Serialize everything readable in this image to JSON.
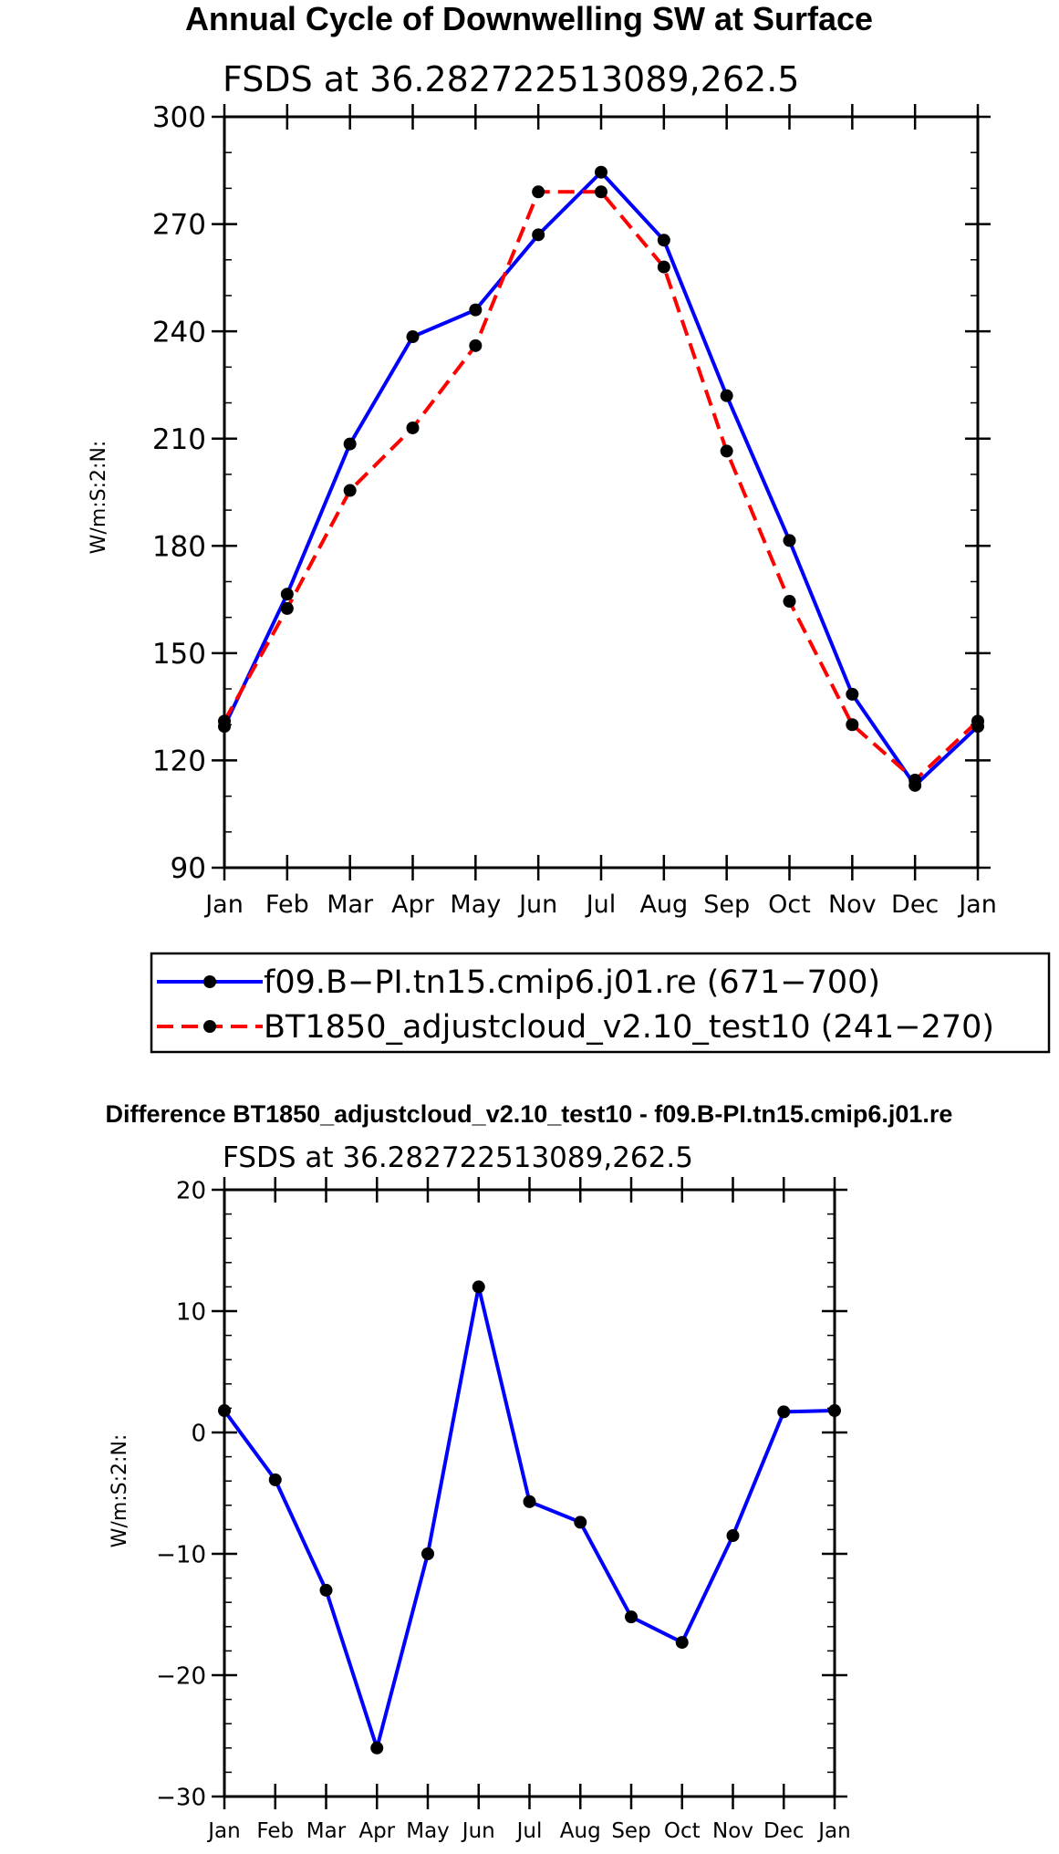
{
  "chart_data": [
    {
      "type": "line",
      "title": "Annual Cycle of Downwelling SW at Surface",
      "subtitle": "FSDS at 36.282722513089,262.5",
      "ylabel": "W/m:S:2:N:",
      "xlabel": "",
      "categories": [
        "Jan",
        "Feb",
        "Mar",
        "Apr",
        "May",
        "Jun",
        "Jul",
        "Aug",
        "Sep",
        "Oct",
        "Nov",
        "Dec",
        "Jan"
      ],
      "ylim": [
        90,
        300
      ],
      "yticks": [
        "90",
        "120",
        "150",
        "180",
        "210",
        "240",
        "270",
        "300"
      ],
      "series": [
        {
          "name": "f09.B-PI.tn15.cmip6.j01.re (671-700)",
          "label": "f09.B−PI.tn15.cmip6.j01.re (671−700)",
          "color": "#0000ff",
          "dash": "solid",
          "values": [
            129.5,
            166.5,
            208.5,
            238.5,
            246,
            267,
            284.5,
            265.5,
            222,
            181.5,
            138.5,
            113,
            129.5
          ]
        },
        {
          "name": "BT1850_adjustcloud_v2.10_test10 (241-270)",
          "label": "BT1850_adjustcloud_v2.10_test10 (241−270)",
          "color": "#ff0000",
          "dash": "dashed",
          "values": [
            131,
            162.5,
            195.5,
            213,
            236,
            279,
            279,
            258,
            206.5,
            164.5,
            130,
            114.5,
            131
          ]
        }
      ]
    },
    {
      "type": "line",
      "title": "Difference BT1850_adjustcloud_v2.10_test10 - f09.B-PI.tn15.cmip6.j01.re",
      "subtitle": "FSDS at 36.282722513089,262.5",
      "ylabel": "W/m:S:2:N:",
      "xlabel": "",
      "categories": [
        "Jan",
        "Feb",
        "Mar",
        "Apr",
        "May",
        "Jun",
        "Jul",
        "Aug",
        "Sep",
        "Oct",
        "Nov",
        "Dec",
        "Jan"
      ],
      "ylim": [
        -30,
        20
      ],
      "yticks": [
        "−30",
        "−20",
        "−10",
        "0",
        "10",
        "20"
      ],
      "series": [
        {
          "name": "difference",
          "color": "#0000ff",
          "dash": "solid",
          "values": [
            1.8,
            -3.9,
            -13,
            -26,
            -10,
            12,
            -5.7,
            -7.4,
            -15.2,
            -17.3,
            -8.5,
            1.7,
            1.8
          ]
        }
      ]
    }
  ]
}
